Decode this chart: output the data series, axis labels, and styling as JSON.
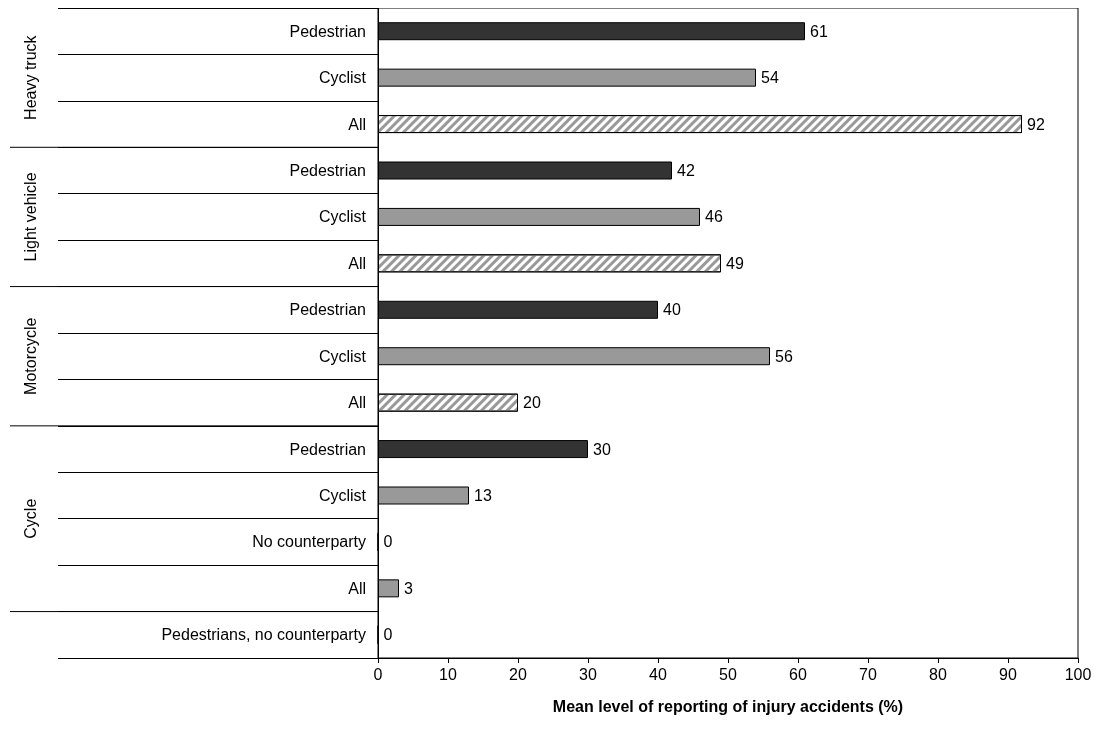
{
  "chart_data": {
    "type": "bar",
    "orientation": "horizontal",
    "xlabel": "Mean level of reporting of injury accidents (%)",
    "categories": [
      "Pedestrian",
      "Cyclist",
      "All",
      "Pedestrian",
      "Cyclist",
      "All",
      "Pedestrian",
      "Cyclist",
      "All",
      "Pedestrian",
      "Cyclist",
      "No counterparty",
      "All",
      "Pedestrians, no counterparty"
    ],
    "values": [
      61,
      54,
      92,
      42,
      46,
      49,
      40,
      56,
      20,
      30,
      13,
      0,
      3,
      0
    ],
    "colors": [
      "#333333",
      "#999999",
      "#ffffff",
      "#333333",
      "#999999",
      "#ffffff",
      "#333333",
      "#999999",
      "#ffffff",
      "#333333",
      "#999999",
      "#999999",
      "#999999",
      "#999999"
    ],
    "annotations": [
      "Heavy truck",
      "Light vehicle",
      "Motorcycle",
      "Cycle"
    ],
    "xlim": [
      0,
      100
    ],
    "xticks": [
      0,
      10,
      20,
      30,
      40,
      50,
      60,
      70,
      80,
      90,
      100
    ],
    "data_labels": true
  }
}
